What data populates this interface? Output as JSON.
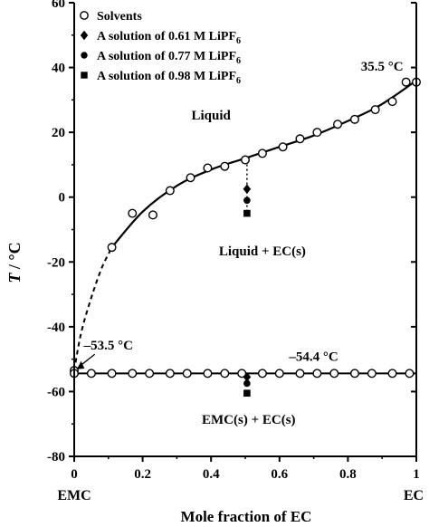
{
  "chart_data": {
    "type": "scatter",
    "title": "",
    "xlabel": "Mole fraction of EC",
    "ylabel_var": "T",
    "ylabel_unit": " / °C",
    "xlim": [
      0,
      1
    ],
    "ylim": [
      -80,
      60
    ],
    "x_ticks": [
      "0",
      "0.2",
      "0.4",
      "0.6",
      "0.8",
      "1"
    ],
    "y_ticks": [
      "-80",
      "-60",
      "-40",
      "-20",
      "0",
      "20",
      "40",
      "60"
    ],
    "x_end_labels": {
      "left": "EMC",
      "right": "EC"
    },
    "legend": [
      {
        "marker": "circle-open",
        "label": "Solvents"
      },
      {
        "marker": "diamond",
        "label": "A solution of 0.61 M LiPF",
        "sub": "6"
      },
      {
        "marker": "circle-filled",
        "label": "A solution of 0.77 M LiPF",
        "sub": "6"
      },
      {
        "marker": "square",
        "label": "A solution of 0.98 M LiPF",
        "sub": "6"
      }
    ],
    "series": [
      {
        "name": "Solvents (liquidus)",
        "marker": "circle-open",
        "points": [
          [
            0,
            -53.5
          ],
          [
            0.11,
            -15.5
          ],
          [
            0.17,
            -5
          ],
          [
            0.23,
            -5.5
          ],
          [
            0.28,
            2
          ],
          [
            0.34,
            6
          ],
          [
            0.39,
            9
          ],
          [
            0.44,
            9.5
          ],
          [
            0.5,
            11.5
          ],
          [
            0.55,
            13.5
          ],
          [
            0.61,
            15.5
          ],
          [
            0.66,
            18
          ],
          [
            0.71,
            20
          ],
          [
            0.77,
            22.5
          ],
          [
            0.82,
            24
          ],
          [
            0.88,
            27
          ],
          [
            0.93,
            29.5
          ],
          [
            0.97,
            35.5
          ],
          [
            1.0,
            35.5
          ]
        ]
      },
      {
        "name": "Solvents (eutectic)",
        "marker": "circle-open",
        "points": [
          [
            0,
            -54.4
          ],
          [
            0.05,
            -54.4
          ],
          [
            0.11,
            -54.4
          ],
          [
            0.17,
            -54.4
          ],
          [
            0.22,
            -54.4
          ],
          [
            0.28,
            -54.4
          ],
          [
            0.33,
            -54.4
          ],
          [
            0.39,
            -54.4
          ],
          [
            0.44,
            -54.4
          ],
          [
            0.49,
            -54.4
          ],
          [
            0.55,
            -54.4
          ],
          [
            0.6,
            -54.4
          ],
          [
            0.66,
            -54.4
          ],
          [
            0.71,
            -54.4
          ],
          [
            0.76,
            -54.4
          ],
          [
            0.82,
            -54.4
          ],
          [
            0.87,
            -54.4
          ],
          [
            0.93,
            -54.4
          ],
          [
            0.98,
            -54.4
          ]
        ]
      },
      {
        "name": "A solution of 0.61 M LiPF6",
        "marker": "diamond",
        "points": [
          [
            0.505,
            2.5
          ],
          [
            0.505,
            -55.5
          ]
        ]
      },
      {
        "name": "A solution of 0.77 M LiPF6",
        "marker": "circle-filled",
        "points": [
          [
            0.505,
            -1
          ],
          [
            0.505,
            -57.5
          ]
        ]
      },
      {
        "name": "A solution of 0.98 M LiPF6",
        "marker": "square",
        "points": [
          [
            0.505,
            -5
          ],
          [
            0.505,
            -60.5
          ]
        ]
      }
    ],
    "curves": {
      "liquidus_solid": [
        [
          0.11,
          -15.5
        ],
        [
          0.2,
          -4.5
        ],
        [
          0.3,
          3.5
        ],
        [
          0.4,
          8.5
        ],
        [
          0.5,
          12
        ],
        [
          0.6,
          15.5
        ],
        [
          0.7,
          19
        ],
        [
          0.8,
          23.5
        ],
        [
          0.88,
          27.5
        ],
        [
          0.94,
          31.5
        ],
        [
          1.0,
          36
        ]
      ],
      "liquidus_dashed": [
        [
          0,
          -53.5
        ],
        [
          0.02,
          -42
        ],
        [
          0.05,
          -31
        ],
        [
          0.08,
          -22
        ],
        [
          0.11,
          -15.5
        ]
      ],
      "eutectic": [
        [
          0,
          -54.4
        ],
        [
          1,
          -54.4
        ]
      ],
      "dotted_drop": [
        [
          0.505,
          11.5
        ],
        [
          0.505,
          -4
        ]
      ]
    },
    "annotations": [
      {
        "text": "35.5 °C",
        "x": 0.9,
        "y": 39
      },
      {
        "text": "Liquid",
        "x": 0.4,
        "y": 24
      },
      {
        "text": "Liquid + EC(s)",
        "x": 0.55,
        "y": -18
      },
      {
        "text": "–53.5 °C",
        "x": 0.1,
        "y": -47
      },
      {
        "text": "–54.4 °C",
        "x": 0.7,
        "y": -50.5
      },
      {
        "text": "EMC(s) + EC(s)",
        "x": 0.51,
        "y": -70
      }
    ]
  }
}
